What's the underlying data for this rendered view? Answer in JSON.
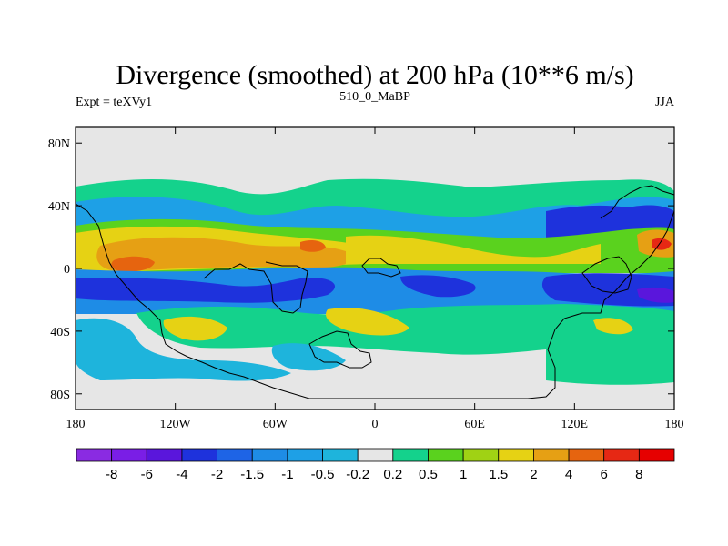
{
  "chart_data": {
    "type": "filled-contour-map",
    "title": "Divergence (smoothed) at 200 hPa (10**6 m/s)",
    "left_label": "Expt = teXVy1",
    "center_label": "510_0_MaBP",
    "right_label": "JJA",
    "x_range": [
      -180,
      180
    ],
    "y_range": [
      -90,
      90
    ],
    "x_ticks": [
      {
        "value": -180,
        "label": "180"
      },
      {
        "value": -120,
        "label": "120W"
      },
      {
        "value": -60,
        "label": "60W"
      },
      {
        "value": 0,
        "label": "0"
      },
      {
        "value": 60,
        "label": "60E"
      },
      {
        "value": 120,
        "label": "120E"
      },
      {
        "value": 180,
        "label": "180"
      }
    ],
    "y_ticks": [
      {
        "value": 80,
        "label": "80N"
      },
      {
        "value": 40,
        "label": "40N"
      },
      {
        "value": 0,
        "label": "0"
      },
      {
        "value": -40,
        "label": "40S"
      },
      {
        "value": -80,
        "label": "80S"
      }
    ],
    "levels": [
      "-8",
      "-6",
      "-4",
      "-2",
      "-1.5",
      "-1",
      "-0.5",
      "-0.2",
      "0.2",
      "0.5",
      "1",
      "1.5",
      "2",
      "4",
      "6",
      "8"
    ],
    "colors": [
      "#8a2be2",
      "#7a1ee6",
      "#5a16dc",
      "#1e32dc",
      "#1e64e6",
      "#1e8ce6",
      "#1ea0e6",
      "#1eb4dc",
      "#e6e6e6",
      "#14d28c",
      "#5ad21e",
      "#a0d214",
      "#e6d214",
      "#e6a014",
      "#e6640f",
      "#e62814",
      "#e60000"
    ]
  },
  "regions": [
    {
      "level": "0.5",
      "color": "#14d28c",
      "shape": "band-north-40"
    },
    {
      "level": "-1",
      "color": "#1ea0e6",
      "shape": "band-north-25"
    },
    {
      "level": "2",
      "color": "#e6d214",
      "shape": "band-equator"
    },
    {
      "level": "4",
      "color": "#e6a014",
      "shape": "core-equator"
    },
    {
      "level": "-2",
      "color": "#1e32dc",
      "shape": "band-south-15"
    },
    {
      "level": "0.5",
      "color": "#14d28c",
      "shape": "band-south-35"
    },
    {
      "level": "-0.5",
      "color": "#1eb4dc",
      "shape": "band-south-60"
    }
  ]
}
